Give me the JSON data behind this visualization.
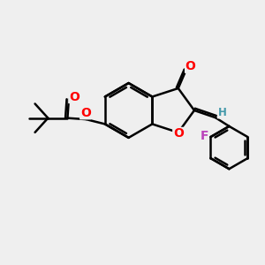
{
  "background_color": "#efefef",
  "bond_color": "#000000",
  "bond_width": 1.8,
  "atom_colors": {
    "O": "#ff0000",
    "F": "#bb44bb",
    "H": "#4499aa",
    "C": "#000000"
  },
  "font_size_atom": 10,
  "font_size_H": 8.5
}
